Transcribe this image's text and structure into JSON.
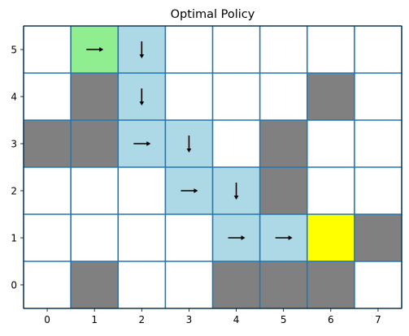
{
  "chart_data": {
    "type": "grid-policy",
    "title": "Optimal Policy",
    "xlabel": "",
    "ylabel": "",
    "x_ticks": [
      0,
      1,
      2,
      3,
      4,
      5,
      6,
      7
    ],
    "y_ticks": [
      0,
      1,
      2,
      3,
      4,
      5
    ],
    "xlim": [
      -0.5,
      7.5
    ],
    "ylim": [
      -0.5,
      5.5
    ],
    "grid_lines": true,
    "colors": {
      "empty": "#ffffff",
      "obstacle": "#808080",
      "path": "#add8e6",
      "start": "#90ee90",
      "goal": "#ffff00",
      "grid": "#1f77b4",
      "arrow": "#000000"
    },
    "cells": [
      {
        "x": 1,
        "y": 5,
        "kind": "start",
        "action": "right"
      },
      {
        "x": 2,
        "y": 5,
        "kind": "path",
        "action": "down"
      },
      {
        "x": 2,
        "y": 4,
        "kind": "path",
        "action": "down"
      },
      {
        "x": 2,
        "y": 3,
        "kind": "path",
        "action": "right"
      },
      {
        "x": 3,
        "y": 3,
        "kind": "path",
        "action": "down"
      },
      {
        "x": 3,
        "y": 2,
        "kind": "path",
        "action": "right"
      },
      {
        "x": 4,
        "y": 2,
        "kind": "path",
        "action": "down"
      },
      {
        "x": 4,
        "y": 1,
        "kind": "path",
        "action": "right"
      },
      {
        "x": 5,
        "y": 1,
        "kind": "path",
        "action": "right"
      },
      {
        "x": 6,
        "y": 1,
        "kind": "goal",
        "action": null
      },
      {
        "x": 1,
        "y": 4,
        "kind": "obstacle",
        "action": null
      },
      {
        "x": 6,
        "y": 4,
        "kind": "obstacle",
        "action": null
      },
      {
        "x": 0,
        "y": 3,
        "kind": "obstacle",
        "action": null
      },
      {
        "x": 1,
        "y": 3,
        "kind": "obstacle",
        "action": null
      },
      {
        "x": 5,
        "y": 3,
        "kind": "obstacle",
        "action": null
      },
      {
        "x": 5,
        "y": 2,
        "kind": "obstacle",
        "action": null
      },
      {
        "x": 7,
        "y": 1,
        "kind": "obstacle",
        "action": null
      },
      {
        "x": 1,
        "y": 0,
        "kind": "obstacle",
        "action": null
      },
      {
        "x": 4,
        "y": 0,
        "kind": "obstacle",
        "action": null
      },
      {
        "x": 5,
        "y": 0,
        "kind": "obstacle",
        "action": null
      },
      {
        "x": 6,
        "y": 0,
        "kind": "obstacle",
        "action": null
      }
    ]
  }
}
